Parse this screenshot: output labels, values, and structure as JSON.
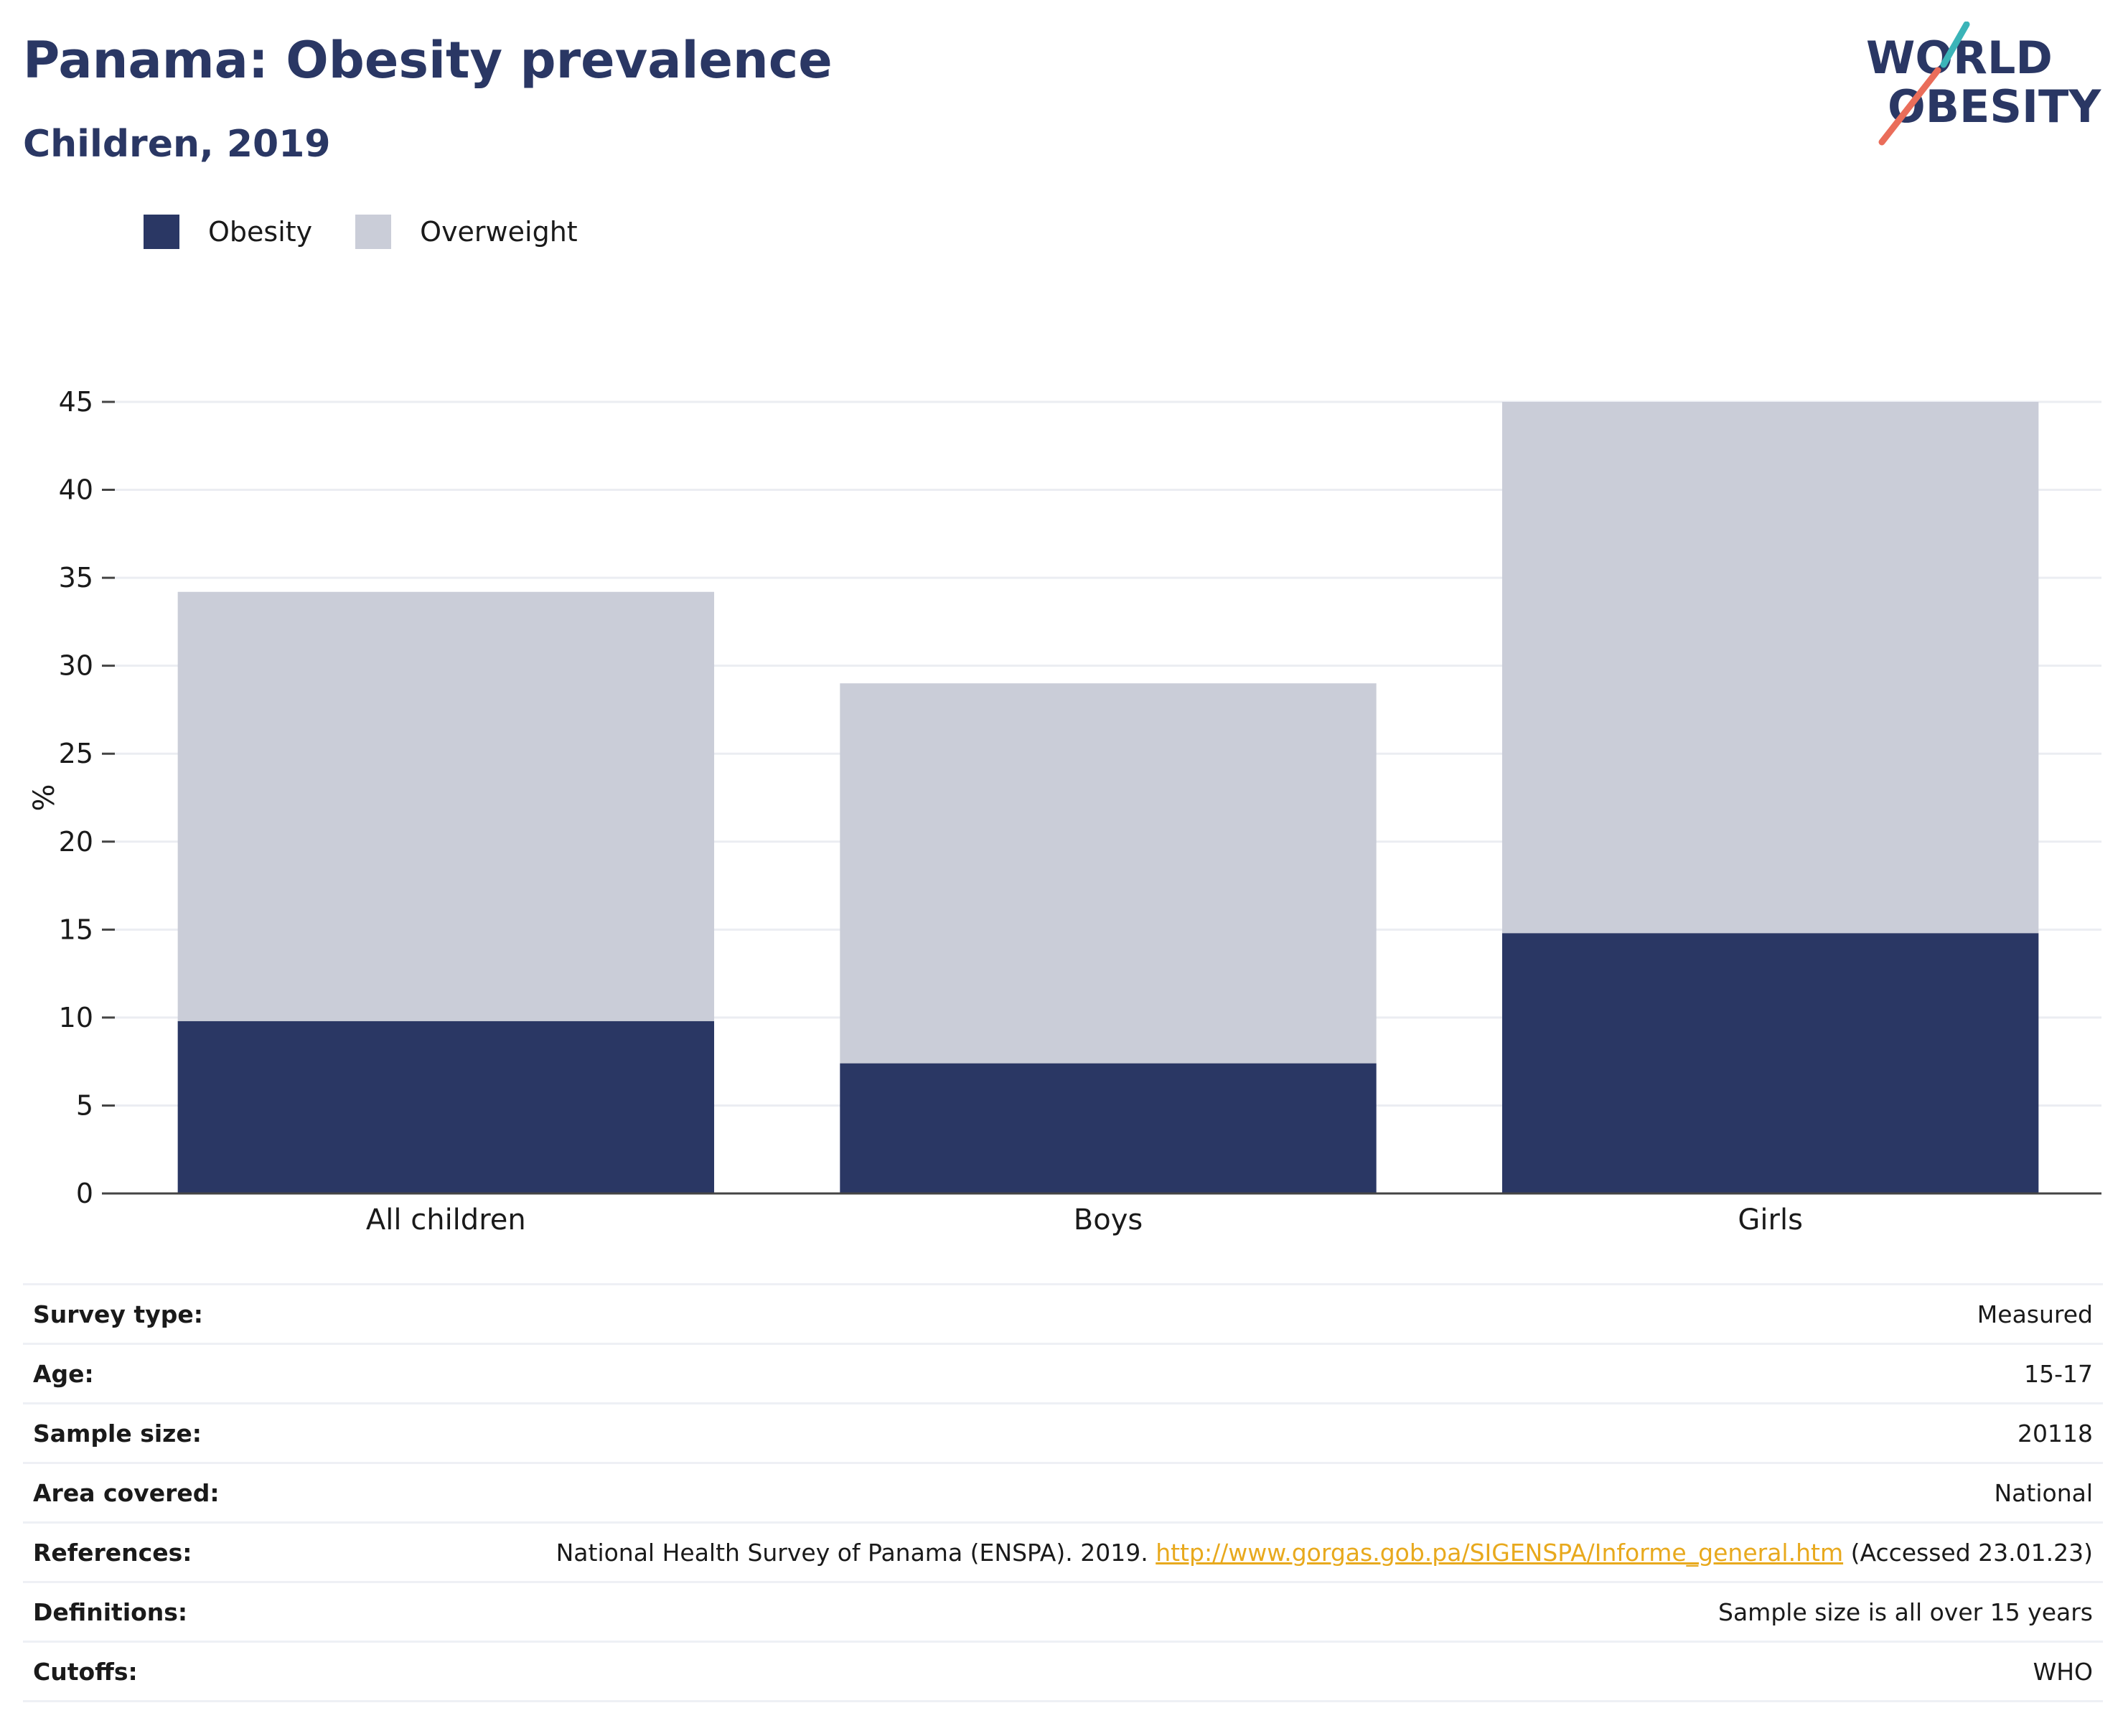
{
  "header": {
    "title": "Panama: Obesity prevalence",
    "subtitle": "Children, 2019"
  },
  "logo": {
    "line1": "WORLD",
    "line2": "OBESITY",
    "colors": {
      "text": "#2a3764",
      "slash_top": "#3bb4b8",
      "slash_bottom": "#ea6d5a"
    }
  },
  "legend": [
    {
      "label": "Obesity",
      "color": "#2a3764"
    },
    {
      "label": "Overweight",
      "color": "#cacdd8"
    }
  ],
  "chart_data": {
    "type": "bar",
    "stacked": true,
    "categories": [
      "All children",
      "Boys",
      "Girls"
    ],
    "series": [
      {
        "name": "Obesity",
        "values": [
          9.8,
          7.4,
          14.8
        ],
        "color": "#2a3764"
      },
      {
        "name": "Overweight",
        "values": [
          24.4,
          21.6,
          30.2
        ],
        "color": "#cacdd8"
      }
    ],
    "ylabel": "%",
    "ylim": [
      0,
      45
    ],
    "yticks": [
      0,
      5,
      10,
      15,
      20,
      25,
      30,
      35,
      40,
      45
    ],
    "grid": true,
    "legend_position": "top-left"
  },
  "metadata": [
    {
      "label": "Survey type:",
      "value": "Measured"
    },
    {
      "label": "Age:",
      "value": "15-17"
    },
    {
      "label": "Sample size:",
      "value": "20118"
    },
    {
      "label": "Area covered:",
      "value": "National"
    },
    {
      "label": "References:",
      "value_prefix": "National Health Survey of Panama (ENSPA). 2019. ",
      "link_text": "http://www.gorgas.gob.pa/SIGENSPA/Informe_general.htm",
      "value_suffix": " (Accessed 23.01.23)"
    },
    {
      "label": "Definitions:",
      "value": "Sample size is all over 15 years"
    },
    {
      "label": "Cutoffs:",
      "value": "WHO"
    }
  ]
}
